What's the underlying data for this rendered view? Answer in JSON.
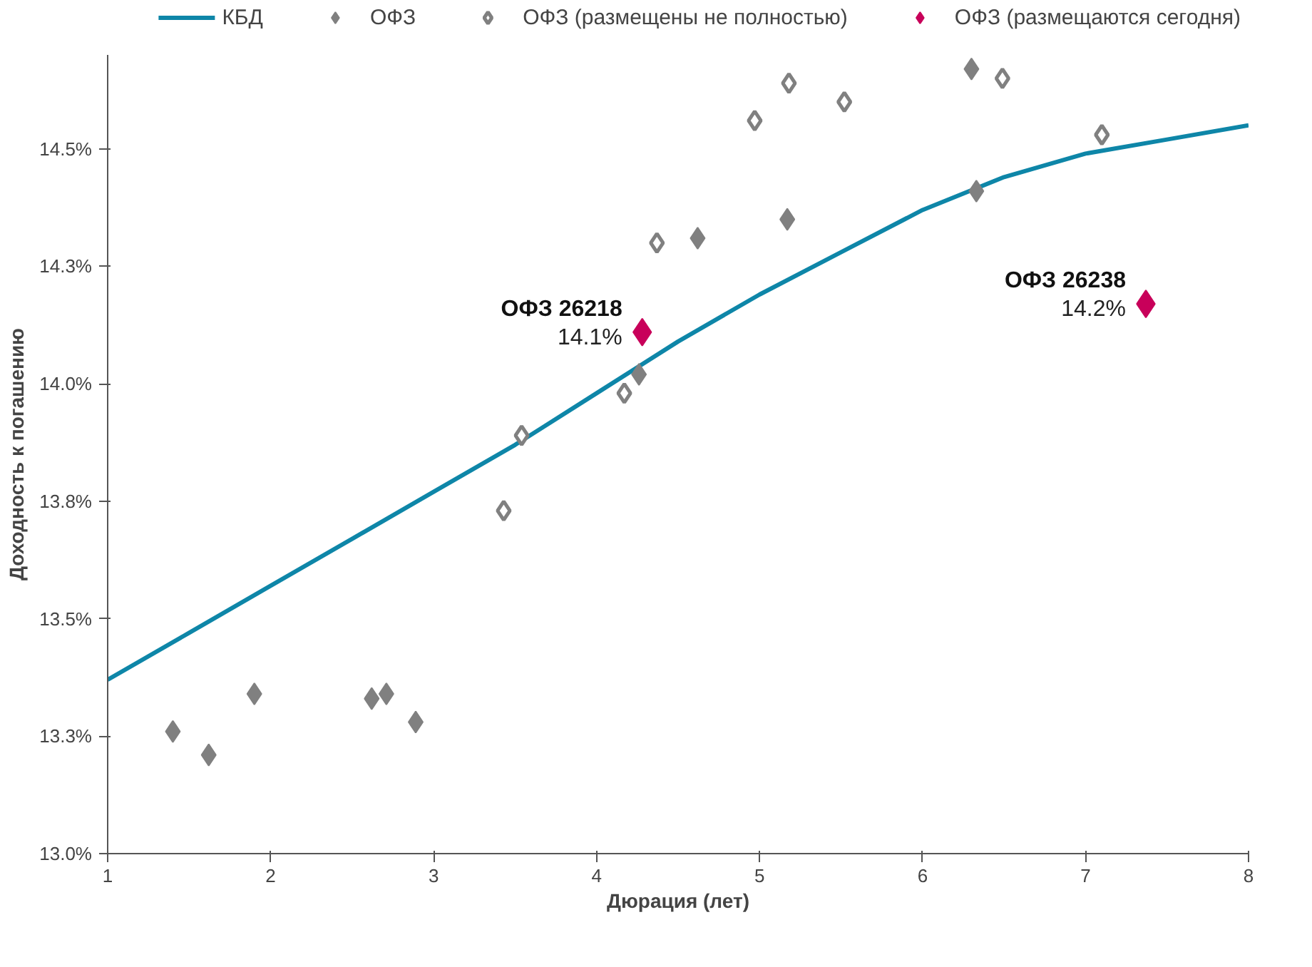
{
  "chart_data": {
    "type": "scatter",
    "xlabel": "Дюрация (лет)",
    "ylabel": "Доходность к погашению",
    "xlim": [
      1,
      8
    ],
    "xticks": [
      1,
      2,
      3,
      4,
      5,
      6,
      7,
      8
    ],
    "ylim": [
      13.0,
      14.7
    ],
    "yticks": [
      {
        "value": 13.0,
        "label": "13.0%"
      },
      {
        "value": 13.25,
        "label": "13.3%"
      },
      {
        "value": 13.5,
        "label": "13.5%"
      },
      {
        "value": 13.75,
        "label": "13.8%"
      },
      {
        "value": 14.0,
        "label": "14.0%"
      },
      {
        "value": 14.25,
        "label": "14.3%"
      },
      {
        "value": 14.5,
        "label": "14.5%"
      }
    ],
    "grid": false,
    "legend": "top",
    "marker": "diamond",
    "series": [
      {
        "name": "КБД",
        "type": "line",
        "marker": "none",
        "color": "#0e86a8",
        "x": [
          1,
          1.5,
          2,
          2.5,
          3,
          3.5,
          4,
          4.5,
          5,
          5.5,
          6,
          6.5,
          7,
          7.5,
          8
        ],
        "values": [
          13.37,
          13.47,
          13.57,
          13.67,
          13.77,
          13.87,
          13.98,
          14.09,
          14.19,
          14.28,
          14.37,
          14.44,
          14.49,
          14.52,
          14.55
        ]
      },
      {
        "name": "ОФЗ",
        "color": "#808080",
        "x": [
          1.4,
          1.62,
          1.9,
          2.62,
          2.71,
          2.89,
          4.26,
          4.62,
          5.17,
          6.3,
          6.33
        ],
        "values": [
          13.26,
          13.21,
          13.34,
          13.33,
          13.34,
          13.28,
          14.02,
          14.31,
          14.35,
          14.67,
          14.41
        ]
      },
      {
        "name": "ОФЗ (размещены не полностью)",
        "color": "#808080",
        "x": [
          3.43,
          3.54,
          4.17,
          4.37,
          4.97,
          5.18,
          5.52,
          6.49,
          7.1
        ],
        "values": [
          13.73,
          13.89,
          13.98,
          14.3,
          14.56,
          14.64,
          14.6,
          14.65,
          14.53
        ]
      },
      {
        "name": "ОФЗ (размещаются сегодня)",
        "color": "#c8005a",
        "x": [
          4.28,
          7.37
        ],
        "values": [
          14.11,
          14.17
        ],
        "value_labels": [
          "14.1%",
          "14.2%"
        ]
      }
    ],
    "annotations": [
      {
        "text": "ОФЗ 26218",
        "x": 4.28,
        "y": 14.11
      },
      {
        "text": "ОФЗ 26238",
        "x": 7.37,
        "y": 14.17
      }
    ]
  }
}
